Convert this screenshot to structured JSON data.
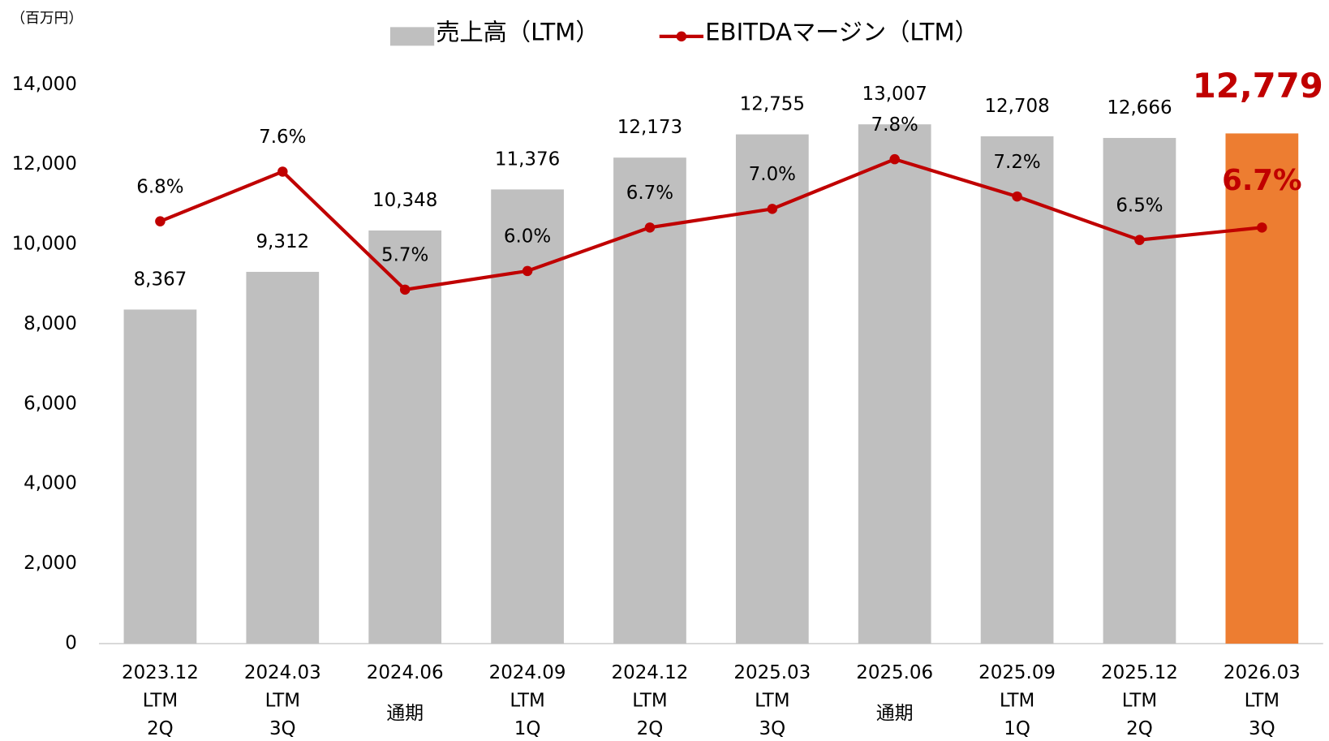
{
  "chart_data": {
    "type": "bar-line",
    "unit_label": "（百万円）",
    "categories": [
      [
        "2023.12",
        "LTM",
        "2Q"
      ],
      [
        "2024.03",
        "LTM",
        "3Q"
      ],
      [
        "2024.06",
        "通期"
      ],
      [
        "2024.09",
        "LTM",
        "1Q"
      ],
      [
        "2024.12",
        "LTM",
        "2Q"
      ],
      [
        "2025.03",
        "LTM",
        "3Q"
      ],
      [
        "2025.06",
        "通期"
      ],
      [
        "2025.09",
        "LTM",
        "1Q"
      ],
      [
        "2025.12",
        "LTM",
        "2Q"
      ],
      [
        "2026.03",
        "LTM",
        "3Q"
      ]
    ],
    "series": [
      {
        "name": "売上高（LTM）",
        "type": "bar",
        "color": "#bfbfbf",
        "colors": [
          "#bfbfbf",
          "#bfbfbf",
          "#bfbfbf",
          "#bfbfbf",
          "#bfbfbf",
          "#bfbfbf",
          "#bfbfbf",
          "#bfbfbf",
          "#bfbfbf",
          "#ed7d31"
        ],
        "values": [
          8367,
          9312,
          10348,
          11376,
          12173,
          12755,
          13007,
          12708,
          12666,
          12779
        ],
        "value_labels": [
          "8,367",
          "9,312",
          "10,348",
          "11,376",
          "12,173",
          "12,755",
          "13,007",
          "12,708",
          "12,666",
          "12,779"
        ]
      },
      {
        "name": "EBITDAマージン（LTM）",
        "type": "line",
        "axis": "y2",
        "color": "#c00000",
        "values": [
          6.8,
          7.6,
          5.7,
          6.0,
          6.7,
          7.0,
          7.8,
          7.2,
          6.5,
          6.7
        ],
        "value_labels": [
          "6.8%",
          "7.6%",
          "5.7%",
          "6.0%",
          "6.7%",
          "7.0%",
          "7.8%",
          "7.2%",
          "6.5%",
          "6.7%"
        ]
      }
    ],
    "highlight": 9,
    "highlight_color": "#c00000",
    "ylim": [
      0,
      14000
    ],
    "yticks": [
      0,
      {
        "value": 2000,
        "label": "2,000"
      },
      {
        "value": 4000,
        "label": "4,000"
      },
      {
        "value": 6000,
        "label": "6,000"
      },
      {
        "value": 8000,
        "label": "8,000"
      },
      {
        "value": 10000,
        "label": "10,000"
      },
      {
        "value": 12000,
        "label": "12,000"
      },
      {
        "value": 14000,
        "label": "14,000"
      }
    ],
    "y2lim": [
      0,
      9
    ],
    "legend": "top"
  }
}
